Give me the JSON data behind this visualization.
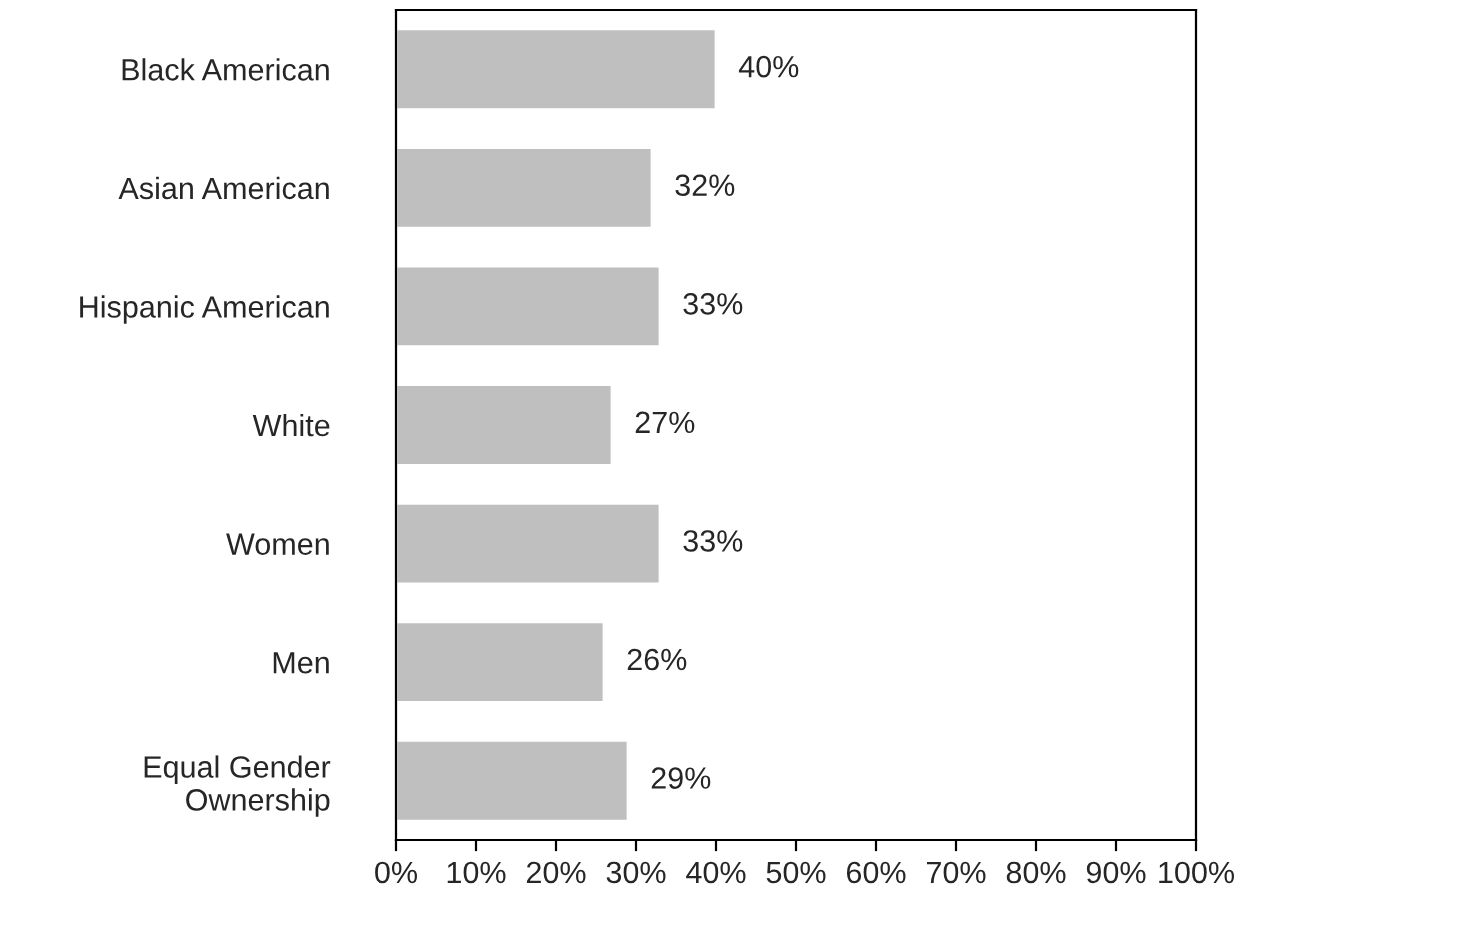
{
  "chart_data": {
    "type": "bar",
    "orientation": "horizontal",
    "categories": [
      "Black American",
      "Asian American",
      "Hispanic American",
      "White",
      "Women",
      "Men",
      "Equal Gender\nOwnership"
    ],
    "values": [
      40,
      32,
      33,
      27,
      33,
      26,
      29
    ],
    "value_labels": [
      "40%",
      "32%",
      "33%",
      "27%",
      "33%",
      "26%",
      "29%"
    ],
    "color": "#bfbfbf",
    "xlim": [
      0,
      100
    ],
    "xticks": [
      {
        "value": 0,
        "label": "0%"
      },
      {
        "value": 10,
        "label": "10%"
      },
      {
        "value": 20,
        "label": "20%"
      },
      {
        "value": 30,
        "label": "30%"
      },
      {
        "value": 40,
        "label": "40%"
      },
      {
        "value": 50,
        "label": "50%"
      },
      {
        "value": 60,
        "label": "60%"
      },
      {
        "value": 70,
        "label": "70%"
      },
      {
        "value": 80,
        "label": "80%"
      },
      {
        "value": 90,
        "label": "90%"
      },
      {
        "value": 100,
        "label": "100%"
      }
    ],
    "grid": false,
    "legend": false
  }
}
